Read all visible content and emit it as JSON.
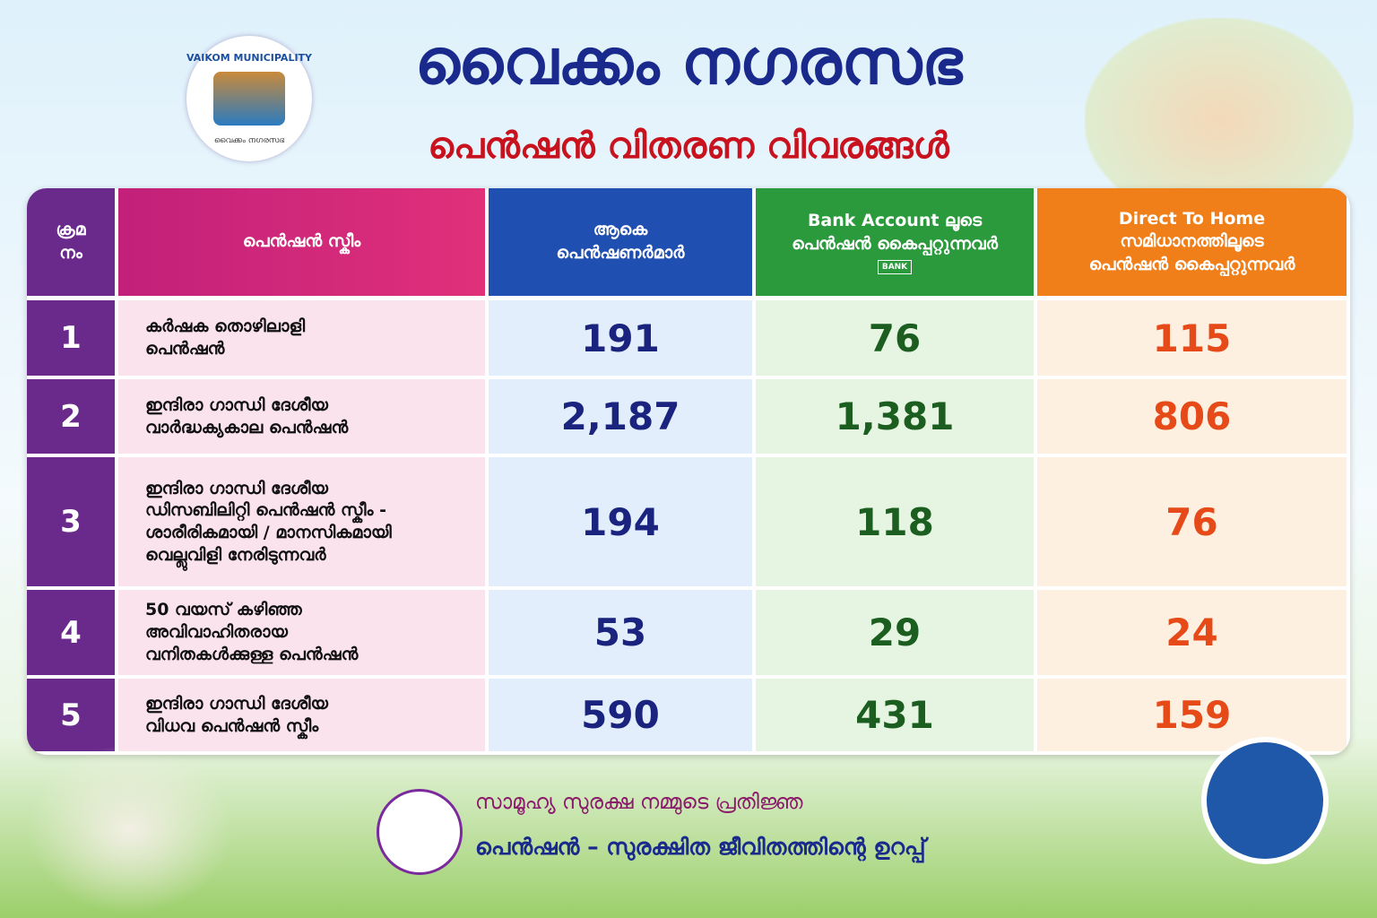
{
  "logo": {
    "name": "VAIKOM MUNICIPALITY",
    "subname": "വൈക്കം നഗരസഭ"
  },
  "header": {
    "title": "വൈക്കം നഗരസഭ",
    "subtitle": "പെൻഷൻ വിതരണ വിവരങ്ങൾ"
  },
  "table": {
    "columns": [
      [
        "ക്രമ",
        "നം"
      ],
      [
        "പെൻഷൻ സ്കീം"
      ],
      [
        "ആകെ",
        "പെൻഷണർമാർ"
      ],
      [
        "Bank Account ലൂടെ",
        "പെൻഷൻ കൈപ്പറ്റുന്നവർ"
      ],
      [
        "Direct To Home",
        "സമിധാനത്തിലൂടെ",
        "പെൻഷൻ കൈപ്പറ്റുന്നവർ"
      ]
    ],
    "bank_icon": "BANK",
    "rows": [
      [
        "1",
        [
          "കർഷക തൊഴിലാളി",
          "പെൻഷൻ"
        ],
        "191",
        "76",
        "115"
      ],
      [
        "2",
        [
          "ഇന്ദിരാ ഗാന്ധി ദേശീയ",
          "വാർദ്ധക്യകാല പെൻഷൻ"
        ],
        "2,187",
        "1,381",
        "806"
      ],
      [
        "3",
        [
          "ഇന്ദിരാ ഗാന്ധി ദേശീയ",
          "ഡിസബിലിറ്റി പെൻഷൻ സ്കീം -",
          "ശാരീരികമായി / മാനസികമായി",
          "വെല്ലുവിളി നേരിടുന്നവർ"
        ],
        "194",
        "118",
        "76"
      ],
      [
        "4",
        [
          "50 വയസ് കഴിഞ്ഞ",
          "അവിവാഹിതരായ",
          "വനിതകൾക്കുള്ള പെൻഷൻ"
        ],
        "53",
        "29",
        "24"
      ],
      [
        "5",
        [
          "ഇന്ദിരാ ഗാന്ധി ദേശീയ",
          "വിധവ പെൻഷൻ സ്കീം"
        ],
        "590",
        "431",
        "159"
      ]
    ]
  },
  "footer": {
    "line1": "സാമൂഹ്യ സുരക്ഷ നമ്മുടെ പ്രതിജ്ഞ",
    "line2": "പെൻഷൻ – സുരക്ഷിത ജീവിതത്തിന്റെ ഉറപ്പ്"
  }
}
